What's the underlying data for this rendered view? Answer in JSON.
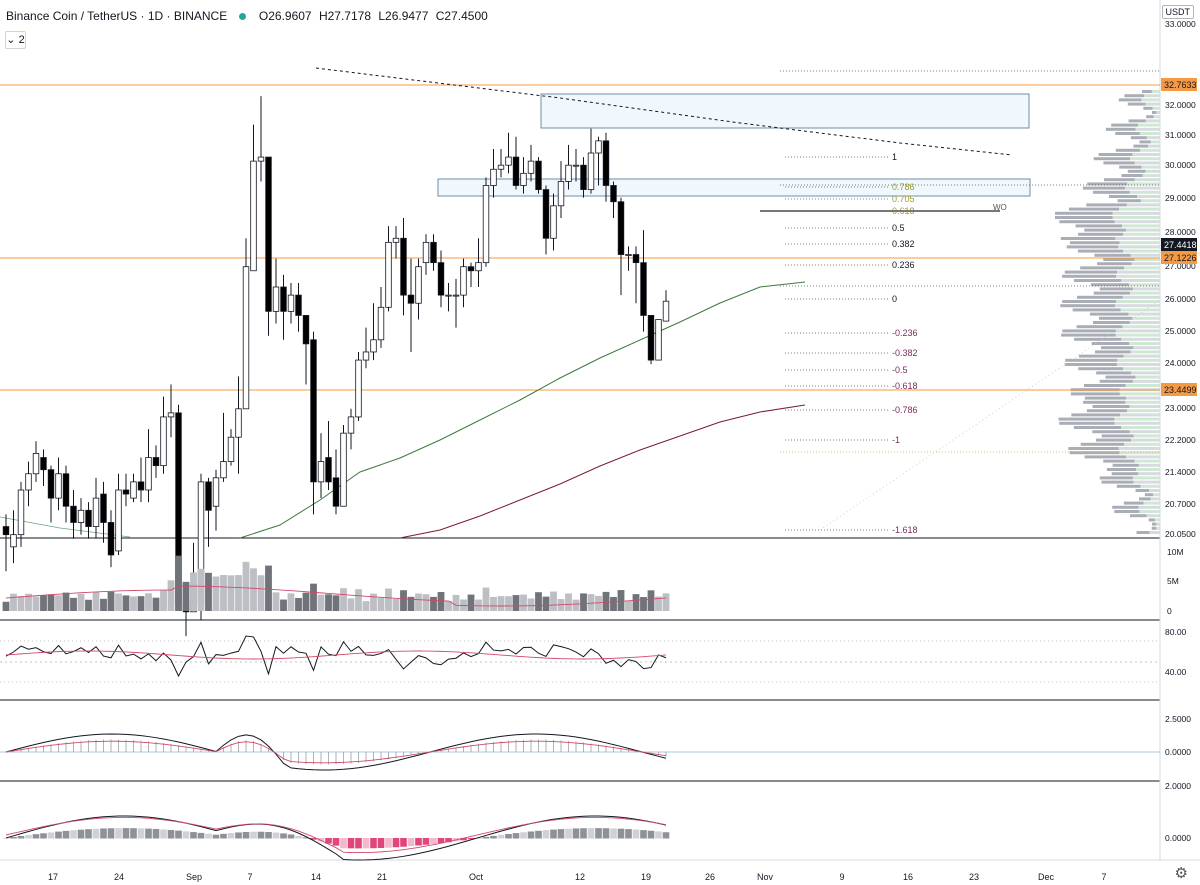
{
  "header": {
    "symbol": "Binance Coin / TetherUS · 1D · BINANCE",
    "open": "O26.9607",
    "high": "H27.7178",
    "low": "L26.9477",
    "close": "C27.4500",
    "indicators_toggle": "⌄ 2",
    "unit": "USDT"
  },
  "price_axis": {
    "ticks": [
      "33.0000",
      "32.0000",
      "31.0000",
      "30.0000",
      "29.0000",
      "28.0000",
      "27.0000",
      "26.0000",
      "25.0000",
      "24.0000",
      "23.0000",
      "22.2000",
      "21.4000",
      "20.7000",
      "20.0500"
    ],
    "labels": [
      {
        "text": "32.7633",
        "color": "#f59a42"
      },
      {
        "text": "27.4418",
        "color": "#131722"
      },
      {
        "text": "27.1226",
        "color": "#f59a42"
      },
      {
        "text": "23.4499",
        "color": "#f59a42"
      }
    ]
  },
  "fib_levels": [
    "1",
    "0.786",
    "0.705",
    "0.618",
    "0.5",
    "0.382",
    "0.236",
    "0",
    "-0.236",
    "-0.382",
    "-0.5",
    "-0.618",
    "-0.786",
    "-1",
    "-1.618"
  ],
  "time_axis": [
    "17",
    "24",
    "Sep",
    "7",
    "14",
    "21",
    "Oct",
    "12",
    "19",
    "26",
    "Nov",
    "9",
    "16",
    "23",
    "Dec",
    "7"
  ],
  "volume_axis": [
    "10M",
    "5M",
    "0"
  ],
  "rsi_axis": [
    "80.00",
    "40.00"
  ],
  "macd1_axis": [
    "2.5000",
    "0.0000"
  ],
  "macd2_axis": [
    "2.0000",
    "0.0000"
  ],
  "colors": {
    "orange": "#f59a42",
    "ma_green": "#3d7a3e",
    "ma_red": "#7b1e2e",
    "hist_pink": "#e0457b"
  },
  "chart_data": {
    "type": "candlestick",
    "ohlc_last": {
      "open": 26.9607,
      "high": 27.7178,
      "low": 26.9477,
      "close": 27.45
    },
    "horizontal_levels": [
      32.7633,
      27.1226,
      23.4499
    ]
  }
}
